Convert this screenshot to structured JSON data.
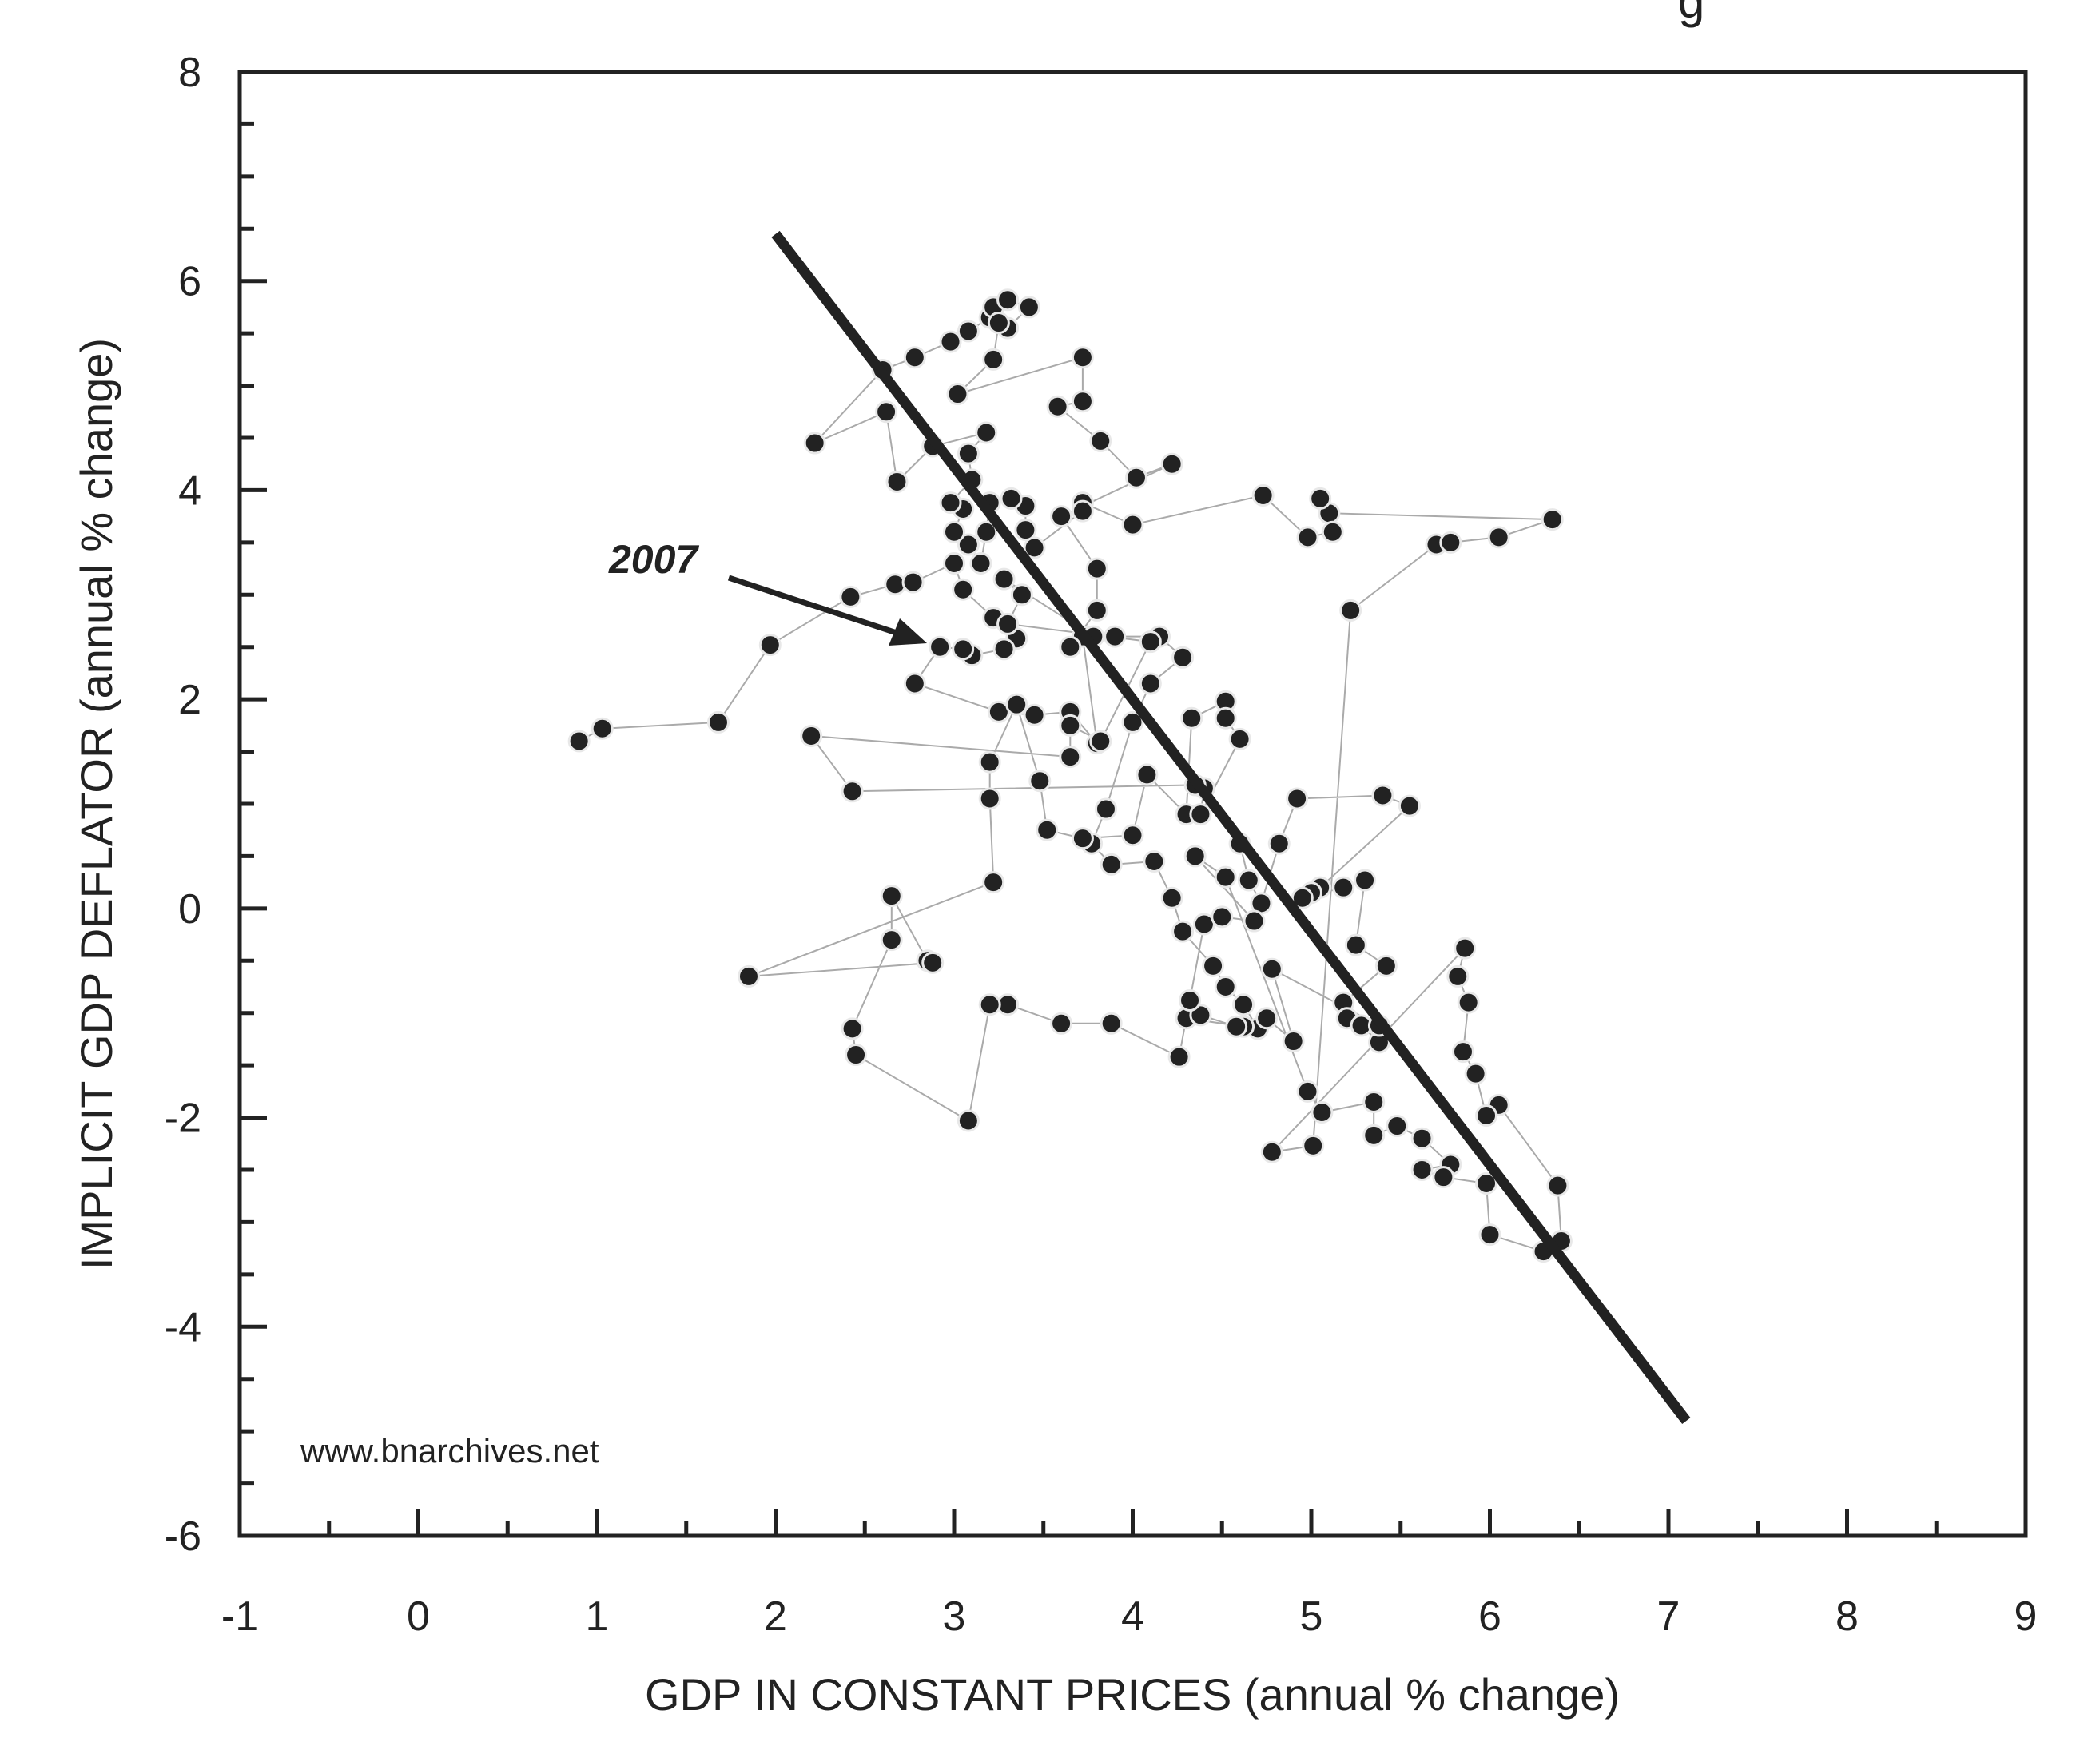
{
  "chart_data": {
    "type": "scatter",
    "title": "",
    "xlabel": "GDP IN CONSTANT PRICES (annual % change)",
    "ylabel": "IMPLICIT GDP DEFLATOR (annual % change)",
    "xlim": [
      -1,
      9
    ],
    "ylim": [
      -6,
      8
    ],
    "x_ticks": [
      "-1",
      "0",
      "1",
      "2",
      "3",
      "4",
      "5",
      "6",
      "7",
      "8",
      "9"
    ],
    "y_ticks": [
      "-6",
      "-4",
      "-2",
      "0",
      "2",
      "4",
      "6",
      "8"
    ],
    "grid": false,
    "legend": "none",
    "watermark": "www.bnarchives.net",
    "title_fragment": "g",
    "annotation": {
      "text": "2007",
      "x": 2.9,
      "y": 2.5
    },
    "fit_line": {
      "x1": 2.0,
      "y1": 6.45,
      "x2": 7.1,
      "y2": -4.9
    },
    "colors": {
      "points": "#222222",
      "line": "#222222",
      "connector": "#aaaaaa"
    },
    "points": [
      [
        0.9,
        1.6
      ],
      [
        1.03,
        1.72
      ],
      [
        1.68,
        1.78
      ],
      [
        1.97,
        2.52
      ],
      [
        2.42,
        2.98
      ],
      [
        2.67,
        3.1
      ],
      [
        2.77,
        3.12
      ],
      [
        3.0,
        3.3
      ],
      [
        3.05,
        3.05
      ],
      [
        3.22,
        2.78
      ],
      [
        3.35,
        2.58
      ],
      [
        3.28,
        2.48
      ],
      [
        3.1,
        2.42
      ],
      [
        3.05,
        2.48
      ],
      [
        2.92,
        2.5
      ],
      [
        2.78,
        2.15
      ],
      [
        3.25,
        1.88
      ],
      [
        3.45,
        1.85
      ],
      [
        3.65,
        1.88
      ],
      [
        3.8,
        1.58
      ],
      [
        3.72,
        2.6
      ],
      [
        3.9,
        2.6
      ],
      [
        4.15,
        2.6
      ],
      [
        4.28,
        2.4
      ],
      [
        4.1,
        2.15
      ],
      [
        4.0,
        1.78
      ],
      [
        3.85,
        0.95
      ],
      [
        3.77,
        0.62
      ],
      [
        3.88,
        0.42
      ],
      [
        4.12,
        0.45
      ],
      [
        4.22,
        0.1
      ],
      [
        4.28,
        -0.22
      ],
      [
        4.45,
        -0.55
      ],
      [
        4.52,
        -0.75
      ],
      [
        4.62,
        -0.92
      ],
      [
        4.7,
        -1.15
      ],
      [
        4.62,
        -1.13
      ],
      [
        4.3,
        -1.05
      ],
      [
        4.26,
        -1.42
      ],
      [
        3.88,
        -1.1
      ],
      [
        3.6,
        -1.1
      ],
      [
        3.3,
        -0.92
      ],
      [
        3.2,
        -0.92
      ],
      [
        3.08,
        -2.03
      ],
      [
        2.45,
        -1.4
      ],
      [
        2.43,
        -1.15
      ],
      [
        2.65,
        -0.3
      ],
      [
        2.65,
        0.12
      ],
      [
        2.85,
        -0.5
      ],
      [
        2.88,
        -0.52
      ],
      [
        1.85,
        -0.65
      ],
      [
        3.22,
        0.25
      ],
      [
        3.2,
        1.05
      ],
      [
        3.2,
        1.4
      ],
      [
        3.35,
        1.95
      ],
      [
        3.48,
        1.22
      ],
      [
        3.52,
        0.75
      ],
      [
        3.72,
        0.67
      ],
      [
        4.0,
        0.7
      ],
      [
        4.08,
        1.28
      ],
      [
        4.3,
        0.9
      ],
      [
        4.33,
        1.82
      ],
      [
        4.52,
        1.98
      ],
      [
        4.52,
        1.82
      ],
      [
        4.6,
        1.62
      ],
      [
        4.38,
        0.9
      ],
      [
        4.4,
        1.15
      ],
      [
        4.6,
        0.62
      ],
      [
        4.65,
        0.27
      ],
      [
        4.72,
        0.05
      ],
      [
        4.82,
        0.62
      ],
      [
        4.92,
        1.05
      ],
      [
        5.4,
        1.08
      ],
      [
        5.55,
        0.98
      ],
      [
        5.05,
        0.2
      ],
      [
        5.0,
        0.15
      ],
      [
        4.95,
        0.1
      ],
      [
        5.18,
        0.2
      ],
      [
        5.3,
        0.27
      ],
      [
        5.25,
        -0.35
      ],
      [
        5.42,
        -0.55
      ],
      [
        5.18,
        -0.9
      ],
      [
        5.2,
        -1.05
      ],
      [
        5.28,
        -1.12
      ],
      [
        5.38,
        -1.28
      ],
      [
        5.38,
        -1.12
      ],
      [
        4.78,
        -0.58
      ],
      [
        4.9,
        -1.27
      ],
      [
        4.75,
        -1.05
      ],
      [
        4.58,
        -1.13
      ],
      [
        4.38,
        -1.02
      ],
      [
        4.32,
        -0.88
      ],
      [
        4.4,
        -0.15
      ],
      [
        4.5,
        -0.08
      ],
      [
        4.68,
        -0.12
      ],
      [
        4.35,
        0.5
      ],
      [
        4.52,
        0.3
      ],
      [
        4.98,
        -1.75
      ],
      [
        5.06,
        -1.95
      ],
      [
        5.35,
        -1.85
      ],
      [
        5.35,
        -2.17
      ],
      [
        5.48,
        -2.08
      ],
      [
        5.62,
        -2.2
      ],
      [
        5.78,
        -2.45
      ],
      [
        5.62,
        -2.5
      ],
      [
        5.74,
        -2.57
      ],
      [
        5.98,
        -2.63
      ],
      [
        6.0,
        -3.12
      ],
      [
        6.3,
        -3.28
      ],
      [
        6.4,
        -3.18
      ],
      [
        6.38,
        -2.65
      ],
      [
        6.05,
        -1.88
      ],
      [
        5.98,
        -1.98
      ],
      [
        5.92,
        -1.58
      ],
      [
        5.85,
        -1.37
      ],
      [
        5.88,
        -0.9
      ],
      [
        5.82,
        -0.65
      ],
      [
        5.86,
        -0.38
      ],
      [
        4.78,
        -2.33
      ],
      [
        5.01,
        -2.27
      ],
      [
        5.22,
        2.85
      ],
      [
        5.7,
        3.48
      ],
      [
        5.78,
        3.5
      ],
      [
        6.05,
        3.55
      ],
      [
        6.35,
        3.72
      ],
      [
        5.1,
        3.78
      ],
      [
        5.05,
        3.92
      ],
      [
        5.12,
        3.6
      ],
      [
        4.98,
        3.55
      ],
      [
        4.73,
        3.95
      ],
      [
        4.0,
        3.67
      ],
      [
        3.72,
        3.88
      ],
      [
        3.72,
        3.8
      ],
      [
        3.45,
        3.45
      ],
      [
        3.4,
        3.62
      ],
      [
        3.4,
        3.85
      ],
      [
        3.32,
        3.92
      ],
      [
        3.2,
        3.88
      ],
      [
        3.18,
        3.6
      ],
      [
        3.15,
        3.3
      ],
      [
        3.08,
        3.48
      ],
      [
        3.0,
        3.6
      ],
      [
        3.05,
        3.82
      ],
      [
        2.98,
        3.88
      ],
      [
        3.1,
        4.1
      ],
      [
        3.08,
        4.35
      ],
      [
        3.18,
        4.55
      ],
      [
        2.88,
        4.42
      ],
      [
        2.68,
        4.08
      ],
      [
        2.62,
        4.75
      ],
      [
        2.22,
        4.45
      ],
      [
        2.6,
        5.15
      ],
      [
        2.78,
        5.27
      ],
      [
        2.98,
        5.42
      ],
      [
        3.08,
        5.52
      ],
      [
        3.2,
        5.65
      ],
      [
        3.22,
        5.75
      ],
      [
        3.3,
        5.82
      ],
      [
        3.42,
        5.75
      ],
      [
        3.3,
        5.55
      ],
      [
        3.25,
        5.6
      ],
      [
        3.22,
        5.25
      ],
      [
        3.02,
        4.92
      ],
      [
        3.72,
        5.27
      ],
      [
        3.72,
        4.85
      ],
      [
        3.58,
        4.8
      ],
      [
        3.82,
        4.47
      ],
      [
        4.02,
        4.12
      ],
      [
        4.22,
        4.25
      ],
      [
        3.6,
        3.75
      ],
      [
        3.8,
        3.25
      ],
      [
        3.8,
        2.85
      ],
      [
        3.65,
        2.5
      ],
      [
        3.78,
        2.6
      ],
      [
        3.28,
        3.15
      ],
      [
        3.38,
        3.0
      ],
      [
        3.3,
        2.72
      ],
      [
        4.1,
        2.55
      ],
      [
        3.82,
        1.6
      ],
      [
        3.65,
        1.75
      ],
      [
        3.65,
        1.45
      ],
      [
        2.2,
        1.65
      ],
      [
        2.43,
        1.12
      ],
      [
        4.35,
        1.18
      ]
    ]
  }
}
